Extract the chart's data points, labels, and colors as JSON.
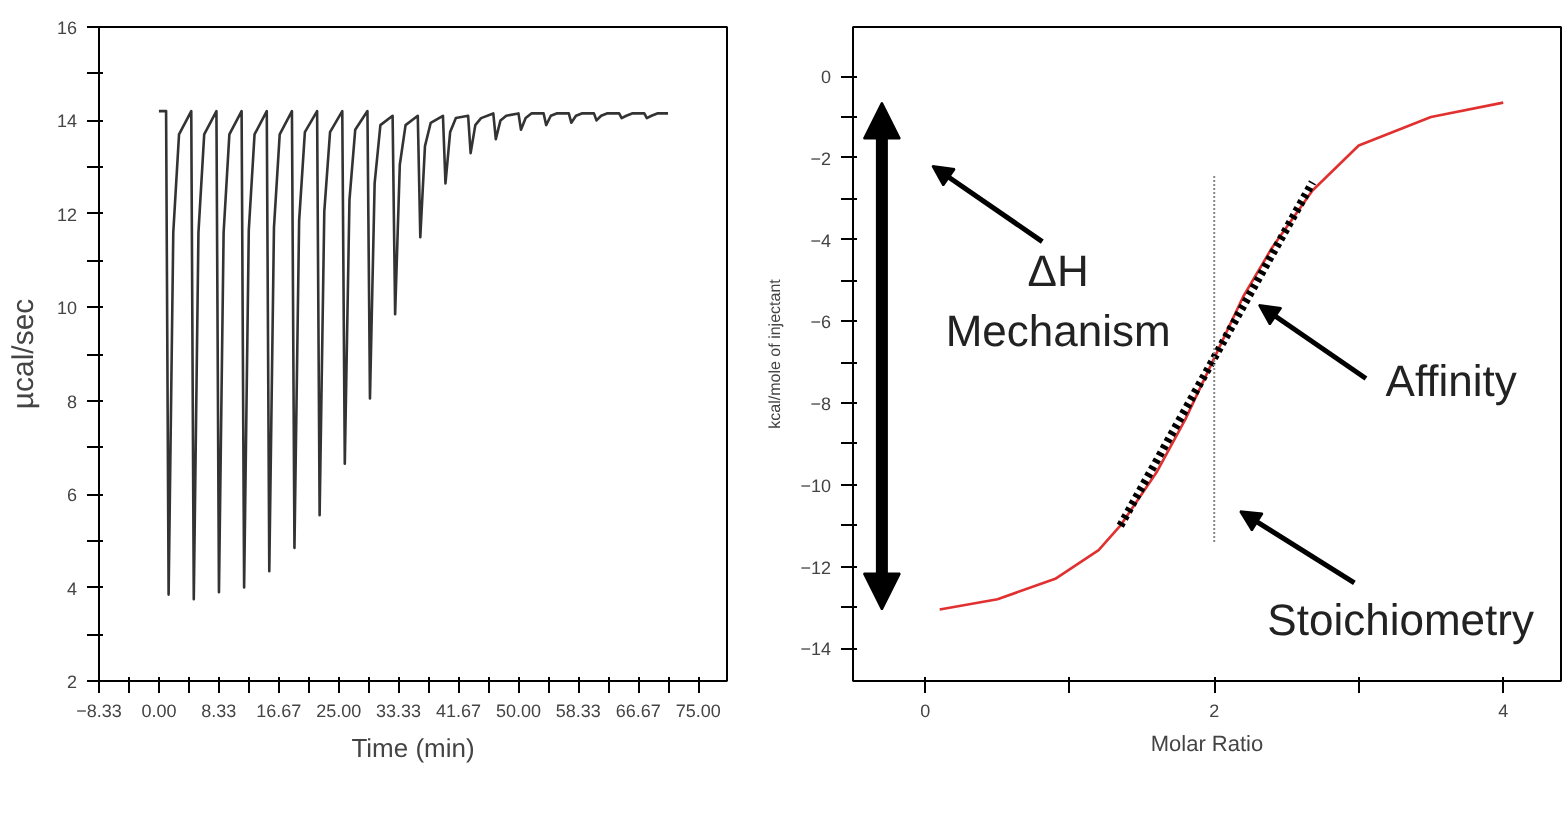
{
  "chart_data": [
    {
      "type": "line",
      "xlabel": "Time (min)",
      "ylabel": "µcal/sec",
      "xlim": [
        -8.33,
        79
      ],
      "ylim": [
        2,
        16
      ],
      "xticks": [
        -8.33,
        {
          "value": -4.17,
          "label": null
        },
        {
          "value": 0,
          "label": "0.00"
        },
        {
          "value": 4.17,
          "label": null
        },
        8.33,
        {
          "value": 12.5,
          "label": null
        },
        16.67,
        {
          "value": 20.83,
          "label": null
        },
        {
          "value": 25,
          "label": "25.00"
        },
        {
          "value": 29.17,
          "label": null
        },
        33.33,
        {
          "value": 37.5,
          "label": null
        },
        41.67,
        {
          "value": 45.83,
          "label": null
        },
        {
          "value": 50,
          "label": "50.00"
        },
        {
          "value": 54.17,
          "label": null
        },
        58.33,
        {
          "value": 62.5,
          "label": null
        },
        66.67,
        {
          "value": 70.83,
          "label": null
        },
        {
          "value": 75,
          "label": "75.00"
        }
      ],
      "yticks": [
        2,
        {
          "value": 3,
          "label": null
        },
        4,
        {
          "value": 5,
          "label": null
        },
        6,
        {
          "value": 7,
          "label": null
        },
        8,
        {
          "value": 9,
          "label": null
        },
        10,
        {
          "value": 11,
          "label": null
        },
        12,
        {
          "value": 13,
          "label": null
        },
        14,
        {
          "value": 15,
          "label": null
        },
        16
      ],
      "grid": false,
      "marker": "none",
      "line_style": "solid",
      "series": [
        {
          "color": "#333333",
          "x": [
            0,
            1.0,
            1.35,
            2.0,
            2.8,
            4.5,
            4.85,
            5.5,
            6.3,
            8.0,
            8.35,
            9.0,
            9.8,
            11.5,
            11.85,
            12.5,
            13.3,
            15.0,
            15.35,
            16.0,
            16.8,
            18.5,
            18.85,
            19.5,
            20.3,
            22.0,
            22.35,
            23.0,
            23.8,
            25.5,
            25.85,
            26.5,
            27.3,
            29.0,
            29.35,
            30.0,
            30.8,
            32.5,
            32.85,
            33.5,
            34.3,
            36.0,
            36.35,
            37.0,
            37.8,
            39.5,
            39.85,
            40.5,
            41.3,
            43.0,
            43.35,
            44.0,
            44.8,
            46.5,
            46.85,
            47.5,
            48.3,
            50.0,
            50.35,
            51.0,
            51.8,
            53.5,
            53.85,
            54.5,
            55.3,
            57.0,
            57.35,
            58.0,
            58.8,
            60.5,
            60.85,
            61.5,
            62.3,
            64.0,
            64.35,
            65.0,
            65.8,
            67.5,
            67.85,
            68.5,
            69.3,
            70.8
          ],
          "values": [
            14.2,
            14.2,
            3.85,
            11.6,
            13.7,
            14.2,
            3.75,
            11.6,
            13.7,
            14.2,
            3.9,
            11.6,
            13.7,
            14.2,
            4.0,
            11.65,
            13.7,
            14.2,
            4.35,
            11.7,
            13.7,
            14.2,
            4.85,
            11.85,
            13.75,
            14.2,
            5.55,
            12.05,
            13.75,
            14.2,
            6.65,
            12.3,
            13.8,
            14.2,
            8.05,
            12.65,
            13.9,
            14.1,
            9.85,
            13.05,
            13.9,
            14.1,
            11.5,
            13.45,
            13.95,
            14.1,
            12.65,
            13.75,
            14.05,
            14.1,
            13.3,
            13.9,
            14.05,
            14.15,
            13.6,
            14.0,
            14.1,
            14.15,
            13.8,
            14.05,
            14.15,
            14.15,
            13.9,
            14.1,
            14.15,
            14.15,
            13.95,
            14.1,
            14.15,
            14.15,
            14.0,
            14.1,
            14.15,
            14.15,
            14.05,
            14.1,
            14.15,
            14.15,
            14.05,
            14.1,
            14.15,
            14.15
          ]
        }
      ]
    },
    {
      "type": "line",
      "xlabel": "Molar Ratio",
      "ylabel": "kcal/mole of injectant",
      "xlim": [
        -0.5,
        4.4
      ],
      "ylim": [
        -14.8,
        1.2
      ],
      "xticks": [
        0,
        {
          "value": 1,
          "label": null
        },
        2,
        {
          "value": 3,
          "label": null
        },
        4
      ],
      "yticks": [
        0,
        {
          "value": -1,
          "label": null
        },
        -2,
        {
          "value": -3,
          "label": null
        },
        -4,
        {
          "value": -5,
          "label": null
        },
        -6,
        {
          "value": -7,
          "label": null
        },
        -8,
        {
          "value": -9,
          "label": null
        },
        -10,
        {
          "value": -11,
          "label": null
        },
        -12,
        {
          "value": -13,
          "label": null
        },
        -14
      ],
      "grid": false,
      "marker": "none",
      "series": [
        {
          "color": "#e03030",
          "line_style": "solid",
          "x": [
            0.1,
            0.5,
            0.9,
            1.2,
            1.35,
            1.6,
            1.8,
            2.0,
            2.2,
            2.4,
            2.68,
            3.0,
            3.5,
            4.0
          ],
          "values": [
            -13.05,
            -12.8,
            -12.3,
            -11.6,
            -11.0,
            -9.7,
            -8.4,
            -6.9,
            -5.4,
            -4.2,
            -2.8,
            -1.7,
            -1.0,
            -0.65
          ]
        },
        {
          "color": "#000000",
          "line_style": "dotted",
          "x": [
            1.35,
            2.68
          ],
          "values": [
            -11.0,
            -2.6
          ]
        },
        {
          "color": "#888888",
          "line_style": "dashed",
          "x": [
            2,
            2
          ],
          "values": [
            -11.4,
            -2.4
          ]
        }
      ],
      "annotations": [
        "ΔH\nMechanism",
        {
          "text": "Affinity",
          "x": 2.31,
          "y": -5.6
        },
        "Stoichiometry"
      ]
    }
  ]
}
